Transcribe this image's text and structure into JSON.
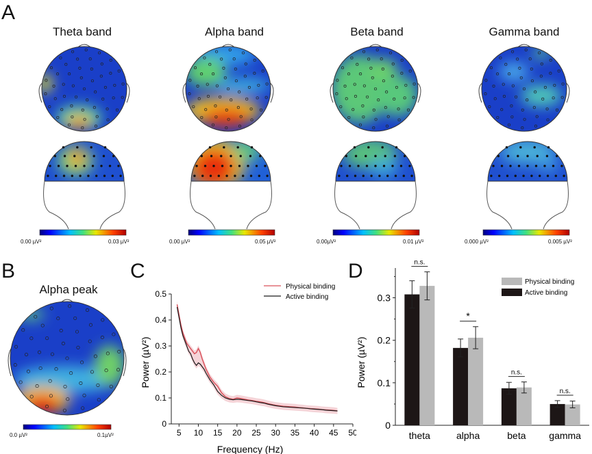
{
  "panels": {
    "a": "A",
    "b": "B",
    "c": "C",
    "d": "D"
  },
  "topomaps": [
    {
      "title": "Theta band",
      "min_label": "0.00 µV²",
      "max_label": "0.03 µV²"
    },
    {
      "title": "Alpha band",
      "min_label": "0.00 µV²",
      "max_label": "0.05 µV²"
    },
    {
      "title": "Beta band",
      "min_label": "0.00µV²",
      "max_label": "0.01 µV²"
    },
    {
      "title": "Gamma band",
      "min_label": "0.000 µV²",
      "max_label": "0.005 µV²"
    }
  ],
  "alpha_peak": {
    "title": "Alpha peak",
    "min_label": "0.0 µV²",
    "max_label": "0.1µV²"
  },
  "colors": {
    "physical": "#d9505a",
    "active": "#1a1a1a",
    "physical_bar": "#b9b9b9",
    "active_bar": "#1d1616"
  },
  "chart_data": [
    {
      "type": "line",
      "xlabel": "Frequency (Hz)",
      "ylabel": "Power (µV²)",
      "xlim": [
        3,
        50
      ],
      "ylim": [
        0,
        0.5
      ],
      "xticks": [
        5,
        10,
        15,
        20,
        25,
        30,
        35,
        40,
        45,
        50
      ],
      "yticks": [
        0,
        0.1,
        0.2,
        0.3,
        0.4,
        0.5
      ],
      "legend": "top-right",
      "x": [
        4.5,
        5,
        5.5,
        6,
        6.5,
        7,
        7.5,
        8,
        8.5,
        9,
        9.5,
        10,
        10.5,
        11,
        11.5,
        12,
        13,
        14,
        15,
        16,
        17,
        18,
        19,
        20,
        21,
        22,
        23,
        24,
        25,
        26,
        27,
        28,
        29,
        30,
        31,
        32,
        33,
        34,
        35,
        36,
        37,
        38,
        39,
        40,
        41,
        42,
        43,
        44,
        45,
        46
      ],
      "series": [
        {
          "name": "Physical binding",
          "values": [
            0.46,
            0.42,
            0.38,
            0.35,
            0.33,
            0.31,
            0.3,
            0.29,
            0.28,
            0.27,
            0.275,
            0.29,
            0.275,
            0.25,
            0.23,
            0.21,
            0.18,
            0.16,
            0.145,
            0.12,
            0.105,
            0.098,
            0.095,
            0.1,
            0.098,
            0.095,
            0.092,
            0.09,
            0.087,
            0.085,
            0.082,
            0.078,
            0.075,
            0.072,
            0.07,
            0.068,
            0.067,
            0.066,
            0.065,
            0.063,
            0.062,
            0.06,
            0.059,
            0.058,
            0.057,
            0.055,
            0.054,
            0.053,
            0.052,
            0.05
          ]
        },
        {
          "name": "Active binding",
          "values": [
            0.45,
            0.41,
            0.37,
            0.34,
            0.32,
            0.3,
            0.28,
            0.27,
            0.25,
            0.235,
            0.225,
            0.235,
            0.23,
            0.22,
            0.21,
            0.195,
            0.17,
            0.15,
            0.125,
            0.11,
            0.1,
            0.095,
            0.093,
            0.095,
            0.094,
            0.092,
            0.09,
            0.088,
            0.085,
            0.082,
            0.08,
            0.076,
            0.073,
            0.07,
            0.068,
            0.066,
            0.065,
            0.064,
            0.063,
            0.062,
            0.061,
            0.06,
            0.058,
            0.057,
            0.056,
            0.055,
            0.053,
            0.052,
            0.051,
            0.05
          ]
        }
      ]
    },
    {
      "type": "bar",
      "ylabel": "Power (µV²)",
      "ylim": [
        0,
        0.37
      ],
      "yticks": [
        0,
        0.1,
        0.2,
        0.3
      ],
      "legend": "top-right",
      "categories": [
        "theta",
        "alpha",
        "beta",
        "gamma"
      ],
      "series": [
        {
          "name": "Physical binding",
          "values": [
            0.328,
            0.206,
            0.089,
            0.049
          ],
          "errors": [
            0.033,
            0.026,
            0.013,
            0.008
          ]
        },
        {
          "name": "Active binding",
          "values": [
            0.308,
            0.182,
            0.087,
            0.05
          ],
          "errors": [
            0.032,
            0.021,
            0.014,
            0.008
          ]
        }
      ],
      "annotations": [
        "n.s.",
        "*",
        "n.s.",
        "n.s."
      ]
    }
  ]
}
